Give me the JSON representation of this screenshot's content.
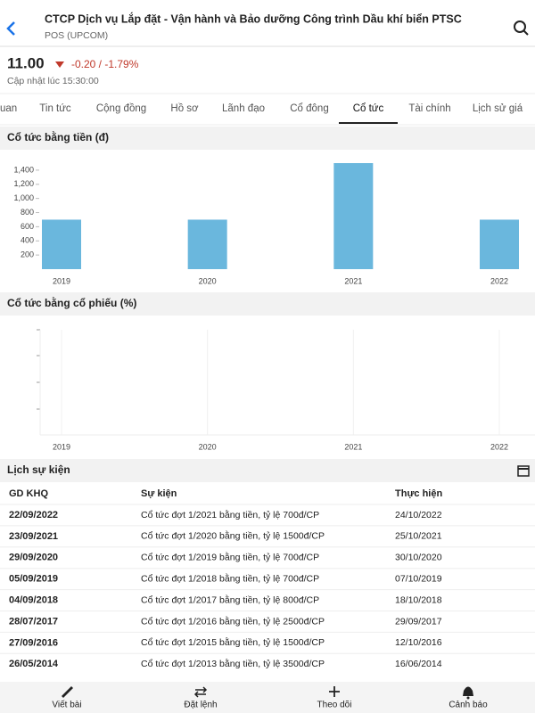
{
  "header": {
    "title": "CTCP Dịch vụ Lắp đặt - Vận hành và Bảo dưỡng Công trình Dầu khí biển PTSC",
    "subtitle": "POS (UPCOM)"
  },
  "price": {
    "value": "11.00",
    "change": "-0.20 / -1.79%",
    "updated": "Cập nhật lúc 15:30:00"
  },
  "tabs": [
    "uan",
    "Tin tức",
    "Cộng đồng",
    "Hồ sơ",
    "Lãnh đạo",
    "Cổ đông",
    "Cổ tức",
    "Tài chính",
    "Lịch sử giá"
  ],
  "chart_data": [
    {
      "type": "bar",
      "title": "Cổ tức bằng tiền (đ)",
      "categories": [
        "2019",
        "2020",
        "2021",
        "2022"
      ],
      "values": [
        700,
        700,
        1500,
        700
      ],
      "color": "#6ab7dd",
      "ylim": [
        0,
        1500
      ],
      "yticks": [
        200,
        400,
        600,
        800,
        {
          "value": 1000,
          "label": "1,000"
        },
        {
          "value": 1200,
          "label": "1,200"
        },
        {
          "value": 1400,
          "label": "1,400"
        }
      ]
    },
    {
      "type": "bar",
      "title": "Cổ tức bằng cổ phiếu (%)",
      "categories": [
        "2019",
        "2020",
        "2021",
        "2022"
      ],
      "values": [
        null,
        null,
        null,
        null
      ],
      "color": "#6ab7dd"
    }
  ],
  "events": {
    "title": "Lịch sự kiện",
    "columns": [
      "GD KHQ",
      "Sự kiện",
      "Thực hiện"
    ],
    "rows": [
      [
        "22/09/2022",
        "Cổ tức đợt 1/2021 bằng tiền, tỷ lệ 700đ/CP",
        "24/10/2022"
      ],
      [
        "23/09/2021",
        "Cổ tức đợt 1/2020 bằng tiền, tỷ lệ 1500đ/CP",
        "25/10/2021"
      ],
      [
        "29/09/2020",
        "Cổ tức đợt 1/2019 bằng tiền, tỷ lệ 700đ/CP",
        "30/10/2020"
      ],
      [
        "05/09/2019",
        "Cổ tức đợt 1/2018 bằng tiền, tỷ lệ 700đ/CP",
        "07/10/2019"
      ],
      [
        "04/09/2018",
        "Cổ tức đợt 1/2017 bằng tiền, tỷ lệ 800đ/CP",
        "18/10/2018"
      ],
      [
        "28/07/2017",
        "Cổ tức đợt 1/2016 bằng tiền, tỷ lệ 2500đ/CP",
        "29/09/2017"
      ],
      [
        "27/09/2016",
        "Cổ tức đợt 1/2015 bằng tiền, tỷ lệ 1500đ/CP",
        "12/10/2016"
      ],
      [
        "26/05/2014",
        "Cổ tức đợt 1/2013 bằng tiền, tỷ lệ 3500đ/CP",
        "16/06/2014"
      ]
    ]
  },
  "nav": [
    "Viết bài",
    "Đặt lệnh",
    "Theo dõi",
    "Cảnh báo"
  ]
}
